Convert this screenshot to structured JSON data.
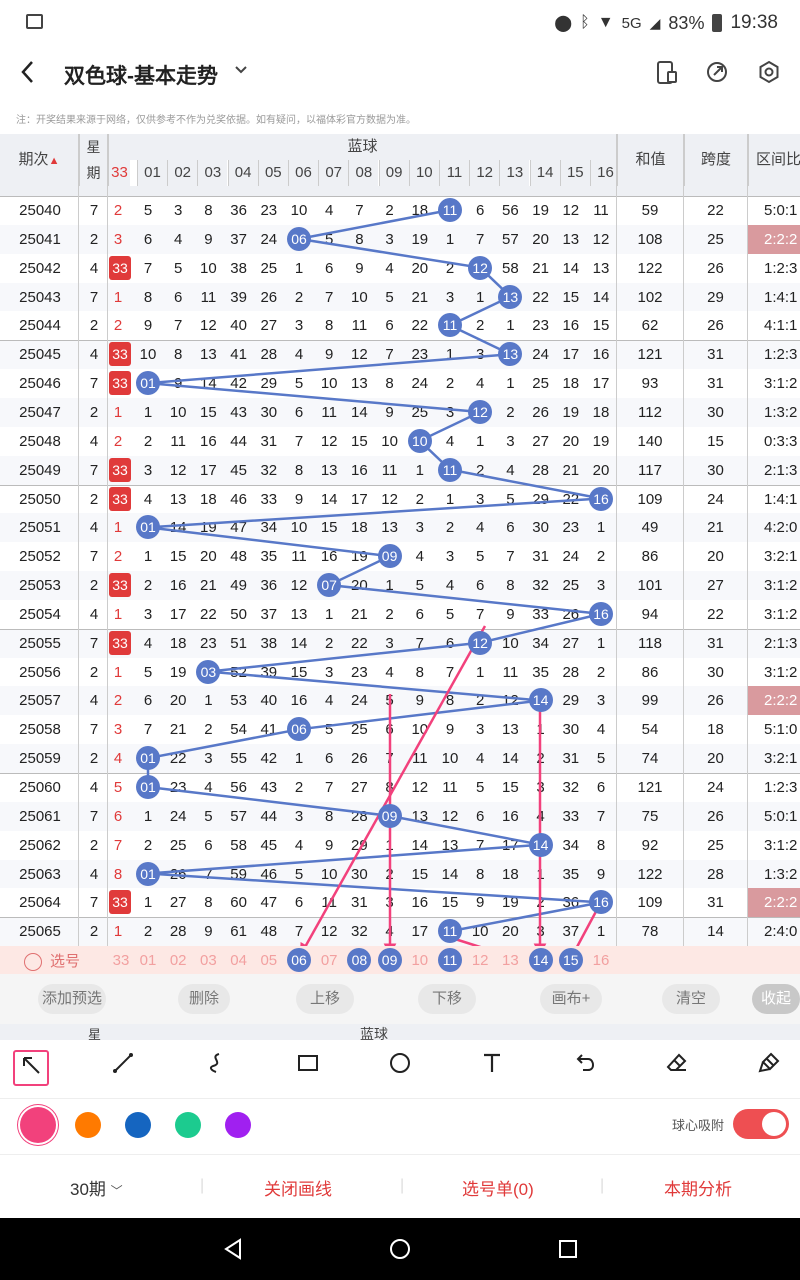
{
  "status": {
    "battery": "83%",
    "time": "19:38",
    "net": "5G"
  },
  "header": {
    "back": "<",
    "title": "双色球-基本走势",
    "dropdown": "⌄"
  },
  "note": "注：开奖结果来源于网络，仅供参考不作为兑奖依据。如有疑问，以福体彩官方数据为准。",
  "table": {
    "col_headers": {
      "period": "期次",
      "week": "星期",
      "blue": "蓝球",
      "sum": "和值",
      "span": "跨度",
      "ratio": "区间比"
    },
    "blue_nums": [
      "33",
      "01",
      "02",
      "03",
      "04",
      "05",
      "06",
      "07",
      "08",
      "09",
      "10",
      "11",
      "12",
      "13",
      "14",
      "15",
      "16"
    ],
    "rows": [
      {
        "p": "25040",
        "w": "7",
        "r": "2",
        "c": [
          "5",
          "3",
          "8",
          "36",
          "23",
          "10",
          "4",
          "7",
          "2",
          "18",
          "11",
          "6",
          "56",
          "19",
          "12",
          "11"
        ],
        "b": 11,
        "s": "59",
        "k": "22",
        "q": "5:0:1"
      },
      {
        "p": "25041",
        "w": "2",
        "r": "3",
        "c": [
          "6",
          "4",
          "9",
          "37",
          "24",
          "06",
          "5",
          "8",
          "3",
          "19",
          "1",
          "7",
          "57",
          "20",
          "13",
          "12"
        ],
        "b": 6,
        "s": "108",
        "k": "25",
        "q": "2:2:2",
        "qh": true
      },
      {
        "p": "25042",
        "w": "4",
        "r": "33",
        "c": [
          "7",
          "5",
          "10",
          "38",
          "25",
          "1",
          "6",
          "9",
          "4",
          "20",
          "2",
          "12",
          "58",
          "21",
          "14",
          "13"
        ],
        "b": 12,
        "s": "122",
        "k": "26",
        "q": "1:2:3"
      },
      {
        "p": "25043",
        "w": "7",
        "r": "1",
        "c": [
          "8",
          "6",
          "11",
          "39",
          "26",
          "2",
          "7",
          "10",
          "5",
          "21",
          "3",
          "1",
          "13",
          "22",
          "15",
          "14"
        ],
        "b": 13,
        "s": "102",
        "k": "29",
        "q": "1:4:1"
      },
      {
        "p": "25044",
        "w": "2",
        "r": "2",
        "c": [
          "9",
          "7",
          "12",
          "40",
          "27",
          "3",
          "8",
          "11",
          "6",
          "22",
          "11",
          "2",
          "1",
          "23",
          "16",
          "15"
        ],
        "b": 11,
        "s": "62",
        "k": "26",
        "q": "4:1:1"
      },
      {
        "p": "25045",
        "w": "4",
        "r": "33",
        "c": [
          "10",
          "8",
          "13",
          "41",
          "28",
          "4",
          "9",
          "12",
          "7",
          "23",
          "1",
          "3",
          "13",
          "24",
          "17",
          "16"
        ],
        "b": 13,
        "s": "121",
        "k": "31",
        "q": "1:2:3"
      },
      {
        "p": "25046",
        "w": "7",
        "r": "33",
        "c": [
          "01",
          "9",
          "14",
          "42",
          "29",
          "5",
          "10",
          "13",
          "8",
          "24",
          "2",
          "4",
          "1",
          "25",
          "18",
          "17"
        ],
        "b": 1,
        "s": "93",
        "k": "31",
        "q": "3:1:2"
      },
      {
        "p": "25047",
        "w": "2",
        "r": "1",
        "c": [
          "1",
          "10",
          "15",
          "43",
          "30",
          "6",
          "11",
          "14",
          "9",
          "25",
          "3",
          "12",
          "2",
          "26",
          "19",
          "18"
        ],
        "b": 12,
        "s": "112",
        "k": "30",
        "q": "1:3:2"
      },
      {
        "p": "25048",
        "w": "4",
        "r": "2",
        "c": [
          "2",
          "11",
          "16",
          "44",
          "31",
          "7",
          "12",
          "15",
          "10",
          "10",
          "4",
          "1",
          "3",
          "27",
          "20",
          "19"
        ],
        "b": 10,
        "s": "140",
        "k": "15",
        "q": "0:3:3"
      },
      {
        "p": "25049",
        "w": "7",
        "r": "33",
        "c": [
          "3",
          "12",
          "17",
          "45",
          "32",
          "8",
          "13",
          "16",
          "11",
          "1",
          "11",
          "2",
          "4",
          "28",
          "21",
          "20"
        ],
        "b": 11,
        "s": "117",
        "k": "30",
        "q": "2:1:3"
      },
      {
        "p": "25050",
        "w": "2",
        "r": "33",
        "c": [
          "4",
          "13",
          "18",
          "46",
          "33",
          "9",
          "14",
          "17",
          "12",
          "2",
          "1",
          "3",
          "5",
          "29",
          "22",
          "16"
        ],
        "b": 16,
        "s": "109",
        "k": "24",
        "q": "1:4:1"
      },
      {
        "p": "25051",
        "w": "4",
        "r": "1",
        "c": [
          "01",
          "14",
          "19",
          "47",
          "34",
          "10",
          "15",
          "18",
          "13",
          "3",
          "2",
          "4",
          "6",
          "30",
          "23",
          "1"
        ],
        "b": 1,
        "s": "49",
        "k": "21",
        "q": "4:2:0"
      },
      {
        "p": "25052",
        "w": "7",
        "r": "2",
        "c": [
          "1",
          "15",
          "20",
          "48",
          "35",
          "11",
          "16",
          "19",
          "09",
          "4",
          "3",
          "5",
          "7",
          "31",
          "24",
          "2"
        ],
        "b": 9,
        "s": "86",
        "k": "20",
        "q": "3:2:1"
      },
      {
        "p": "25053",
        "w": "2",
        "r": "33",
        "c": [
          "2",
          "16",
          "21",
          "49",
          "36",
          "12",
          "07",
          "20",
          "1",
          "5",
          "4",
          "6",
          "8",
          "32",
          "25",
          "3"
        ],
        "b": 7,
        "s": "101",
        "k": "27",
        "q": "3:1:2"
      },
      {
        "p": "25054",
        "w": "4",
        "r": "1",
        "c": [
          "3",
          "17",
          "22",
          "50",
          "37",
          "13",
          "1",
          "21",
          "2",
          "6",
          "5",
          "7",
          "9",
          "33",
          "26",
          "16"
        ],
        "b": 16,
        "s": "94",
        "k": "22",
        "q": "3:1:2"
      },
      {
        "p": "25055",
        "w": "7",
        "r": "33",
        "c": [
          "4",
          "18",
          "23",
          "51",
          "38",
          "14",
          "2",
          "22",
          "3",
          "7",
          "6",
          "12",
          "10",
          "34",
          "27",
          "1"
        ],
        "b": 12,
        "s": "118",
        "k": "31",
        "q": "2:1:3"
      },
      {
        "p": "25056",
        "w": "2",
        "r": "1",
        "c": [
          "5",
          "19",
          "03",
          "52",
          "39",
          "15",
          "3",
          "23",
          "4",
          "8",
          "7",
          "1",
          "11",
          "35",
          "28",
          "2"
        ],
        "b": 3,
        "s": "86",
        "k": "30",
        "q": "3:1:2"
      },
      {
        "p": "25057",
        "w": "4",
        "r": "2",
        "c": [
          "6",
          "20",
          "1",
          "53",
          "40",
          "16",
          "4",
          "24",
          "5",
          "9",
          "8",
          "2",
          "12",
          "14",
          "29",
          "3"
        ],
        "b": 14,
        "s": "99",
        "k": "26",
        "q": "2:2:2",
        "qh": true
      },
      {
        "p": "25058",
        "w": "7",
        "r": "3",
        "c": [
          "7",
          "21",
          "2",
          "54",
          "41",
          "06",
          "5",
          "25",
          "6",
          "10",
          "9",
          "3",
          "13",
          "1",
          "30",
          "4"
        ],
        "b": 6,
        "s": "54",
        "k": "18",
        "q": "5:1:0"
      },
      {
        "p": "25059",
        "w": "2",
        "r": "4",
        "c": [
          "01",
          "22",
          "3",
          "55",
          "42",
          "1",
          "6",
          "26",
          "7",
          "11",
          "10",
          "4",
          "14",
          "2",
          "31",
          "5"
        ],
        "b": 1,
        "s": "74",
        "k": "20",
        "q": "3:2:1"
      },
      {
        "p": "25060",
        "w": "4",
        "r": "5",
        "c": [
          "01",
          "23",
          "4",
          "56",
          "43",
          "2",
          "7",
          "27",
          "8",
          "12",
          "11",
          "5",
          "15",
          "3",
          "32",
          "6"
        ],
        "b": 1,
        "s": "121",
        "k": "24",
        "q": "1:2:3"
      },
      {
        "p": "25061",
        "w": "7",
        "r": "6",
        "c": [
          "1",
          "24",
          "5",
          "57",
          "44",
          "3",
          "8",
          "28",
          "09",
          "13",
          "12",
          "6",
          "16",
          "4",
          "33",
          "7"
        ],
        "b": 9,
        "s": "75",
        "k": "26",
        "q": "5:0:1"
      },
      {
        "p": "25062",
        "w": "2",
        "r": "7",
        "c": [
          "2",
          "25",
          "6",
          "58",
          "45",
          "4",
          "9",
          "29",
          "1",
          "14",
          "13",
          "7",
          "17",
          "14",
          "34",
          "8"
        ],
        "b": 14,
        "s": "92",
        "k": "25",
        "q": "3:1:2"
      },
      {
        "p": "25063",
        "w": "4",
        "r": "8",
        "c": [
          "01",
          "26",
          "7",
          "59",
          "46",
          "5",
          "10",
          "30",
          "2",
          "15",
          "14",
          "8",
          "18",
          "1",
          "35",
          "9"
        ],
        "b": 1,
        "s": "122",
        "k": "28",
        "q": "1:3:2"
      },
      {
        "p": "25064",
        "w": "7",
        "r": "33",
        "c": [
          "1",
          "27",
          "8",
          "60",
          "47",
          "6",
          "11",
          "31",
          "3",
          "16",
          "15",
          "9",
          "19",
          "2",
          "36",
          "16"
        ],
        "b": 16,
        "s": "109",
        "k": "31",
        "q": "2:2:2",
        "qh": true
      },
      {
        "p": "25065",
        "w": "2",
        "r": "1",
        "c": [
          "2",
          "28",
          "9",
          "61",
          "48",
          "7",
          "12",
          "32",
          "4",
          "17",
          "11",
          "10",
          "20",
          "3",
          "37",
          "1"
        ],
        "b": 11,
        "s": "78",
        "k": "14",
        "q": "2:4:0"
      }
    ],
    "pick_label": "选号"
  },
  "actions": [
    "添加预选",
    "删除",
    "上移",
    "下移",
    "画布+",
    "清空",
    "收起"
  ],
  "tools": [
    "arrow-tool",
    "line-tool",
    "curve-tool",
    "rect-tool",
    "circle-tool",
    "text-tool",
    "undo-tool",
    "eraser-tool",
    "clear-tool"
  ],
  "colors": [
    "#f2417c",
    "#ff7a00",
    "#1565c0",
    "#1ccb8f",
    "#a020f0"
  ],
  "magnet_label": "球心吸附",
  "bottom": {
    "period": "30期",
    "close": "关闭画线",
    "list": "选号单(0)",
    "analysis": "本期分析"
  }
}
